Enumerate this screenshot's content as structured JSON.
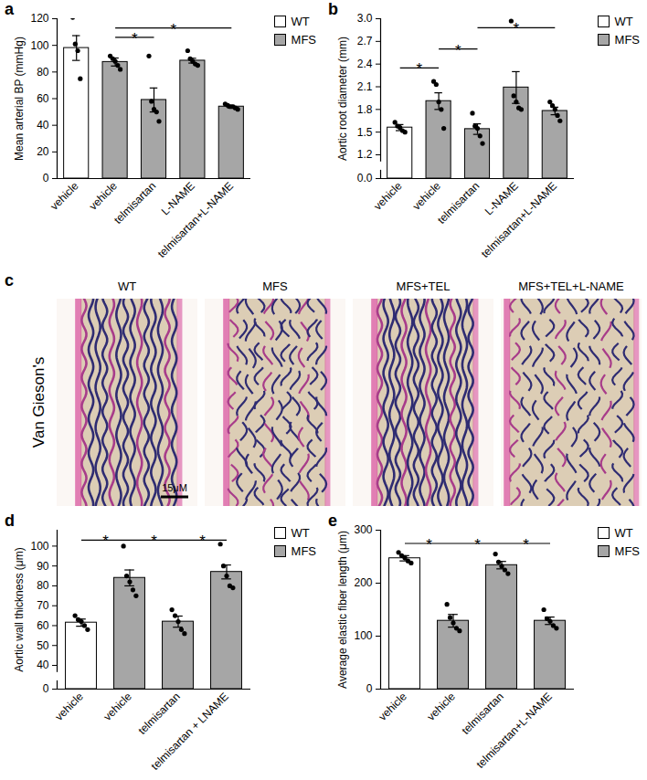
{
  "chart_data": [
    {
      "panel": "a",
      "type": "bar",
      "y_label": "Mean arterial BP (mmHg)",
      "categories": [
        "vehicle",
        "vehicle",
        "telmisartan",
        "L-NAME",
        "telmisartan+L-NAME"
      ],
      "ylim": [
        0,
        120
      ],
      "yticks": [
        0,
        20,
        40,
        60,
        80,
        100,
        120
      ],
      "legend": "right",
      "series": [
        {
          "name": "WT",
          "color": "#ffffff",
          "values": [
            98,
            null,
            null,
            null,
            null
          ],
          "errors": [
            9.3,
            null,
            null,
            null,
            null
          ],
          "points": [
            [
              121,
              101,
              96,
              75
            ],
            null,
            null,
            null,
            null
          ]
        },
        {
          "name": "MFS",
          "color": "#a6a6a6",
          "values": [
            null,
            87.5,
            59,
            88.5,
            54
          ],
          "errors": [
            null,
            3,
            9,
            1.8,
            1
          ],
          "points": [
            null,
            [
              92,
              90,
              88,
              85,
              82
            ],
            [
              92,
              58,
              52,
              50,
              43
            ],
            [
              96,
              90,
              88,
              86,
              85
            ],
            [
              56,
              55,
              54,
              54,
              53,
              52
            ]
          ]
        }
      ],
      "annotations": [
        {
          "from": 1,
          "to": 2,
          "y": 106,
          "label": "*"
        },
        {
          "from": 1,
          "to": 4,
          "y": 113,
          "label": "*"
        }
      ]
    },
    {
      "panel": "b",
      "type": "bar",
      "y_label": "Aortic root diameter (mm)",
      "categories": [
        "vehicle",
        "vehicle",
        "telmisartan",
        "L-NAME",
        "telmisartan+L-NAME"
      ],
      "ylim": [
        0,
        3.0
      ],
      "yticks": [
        {
          "value": 0,
          "label": "0.0"
        },
        1.2,
        1.5,
        1.8,
        2.1,
        2.4,
        2.7,
        {
          "value": 3.0,
          "label": "3.0"
        }
      ],
      "legend": "right",
      "series": [
        {
          "name": "WT",
          "color": "#ffffff",
          "values": [
            1.56,
            null,
            null,
            null,
            null
          ],
          "errors": [
            0.04,
            null,
            null,
            null,
            null
          ],
          "points": [
            [
              1.63,
              1.58,
              1.56,
              1.52,
              1.5
            ],
            null,
            null,
            null,
            null
          ]
        },
        {
          "name": "MFS",
          "color": "#a6a6a6",
          "values": [
            null,
            1.91,
            1.54,
            2.09,
            1.78
          ],
          "errors": [
            null,
            0.11,
            0.07,
            0.21,
            0.05
          ],
          "points": [
            null,
            [
              2.17,
              2.13,
              1.9,
              1.8,
              1.55
            ],
            [
              1.75,
              1.58,
              1.55,
              1.45,
              1.35
            ],
            [
              2.97,
              1.98,
              1.9,
              1.82,
              1.8
            ],
            [
              1.9,
              1.85,
              1.8,
              1.72,
              1.65
            ]
          ]
        }
      ],
      "annotations": [
        {
          "from": 0,
          "to": 1,
          "y": 2.35,
          "label": "*"
        },
        {
          "from": 1,
          "to": 2,
          "y": 2.6,
          "label": "*"
        },
        {
          "from": 2,
          "to": 4,
          "y": 2.88,
          "label": "*"
        }
      ]
    },
    {
      "panel": "d",
      "type": "bar",
      "y_label": "Aortic wall thickness (μm)",
      "categories": [
        "vehicle",
        "vehicle",
        "telmisartan",
        "telmisartan + LNAME"
      ],
      "ylim": [
        0,
        108
      ],
      "yticks": [
        0,
        40,
        50,
        60,
        70,
        80,
        90,
        100
      ],
      "legend": "right",
      "series": [
        {
          "name": "WT",
          "color": "#ffffff",
          "values": [
            61.5,
            null,
            null,
            null
          ],
          "errors": [
            1.8,
            null,
            null,
            null
          ],
          "points": [
            [
              65,
              63,
              62,
              60,
              58
            ],
            null,
            null,
            null
          ]
        },
        {
          "name": "MFS",
          "color": "#a6a6a6",
          "values": [
            null,
            84,
            62,
            87
          ],
          "errors": [
            null,
            4,
            2.8,
            3.5
          ],
          "points": [
            null,
            [
              100,
              85,
              82,
              78,
              75
            ],
            [
              68,
              65,
              62,
              58,
              56
            ],
            [
              101,
              90,
              85,
              80,
              79
            ]
          ]
        }
      ],
      "annotations": [
        {
          "from": 0,
          "to": 1,
          "y": 103,
          "label": "*"
        },
        {
          "from": 1,
          "to": 2,
          "y": 103,
          "label": "*"
        },
        {
          "from": 2,
          "to": 3,
          "y": 103,
          "label": "*"
        }
      ]
    },
    {
      "panel": "e",
      "type": "bar",
      "y_label": "Average elastic fiber length (μm)",
      "categories": [
        "vehicle",
        "vehicle",
        "telmisartan",
        "telmisartan+L-NAME"
      ],
      "ylim": [
        0,
        300
      ],
      "yticks": [
        0,
        100,
        200,
        300
      ],
      "legend": "right",
      "series": [
        {
          "name": "WT",
          "color": "#ffffff",
          "values": [
            247,
            null,
            null,
            null
          ],
          "errors": [
            5,
            null,
            null,
            null
          ],
          "points": [
            [
              258,
              252,
              248,
              242,
              238
            ],
            null,
            null,
            null
          ]
        },
        {
          "name": "MFS",
          "color": "#a6a6a6",
          "values": [
            null,
            129,
            234,
            129
          ],
          "errors": [
            null,
            12,
            7,
            7
          ],
          "points": [
            null,
            [
              160,
              135,
              125,
              115,
              110
            ],
            [
              255,
              240,
              232,
              225,
              218
            ],
            [
              150,
              133,
              128,
              120,
              115
            ]
          ]
        }
      ],
      "annotations": [
        {
          "from": 0,
          "to": 1,
          "y": 275,
          "label": "*"
        },
        {
          "from": 1,
          "to": 2,
          "y": 275,
          "label": "*"
        },
        {
          "from": 2,
          "to": 3,
          "y": 275,
          "label": "*"
        }
      ]
    }
  ],
  "image_panel": {
    "panel": "c",
    "row_label": "Van Gieson's",
    "titles": [
      "WT",
      "MFS",
      "MFS+TEL",
      "MFS+TEL+L-NAME"
    ],
    "scale_bar": "15μM"
  }
}
